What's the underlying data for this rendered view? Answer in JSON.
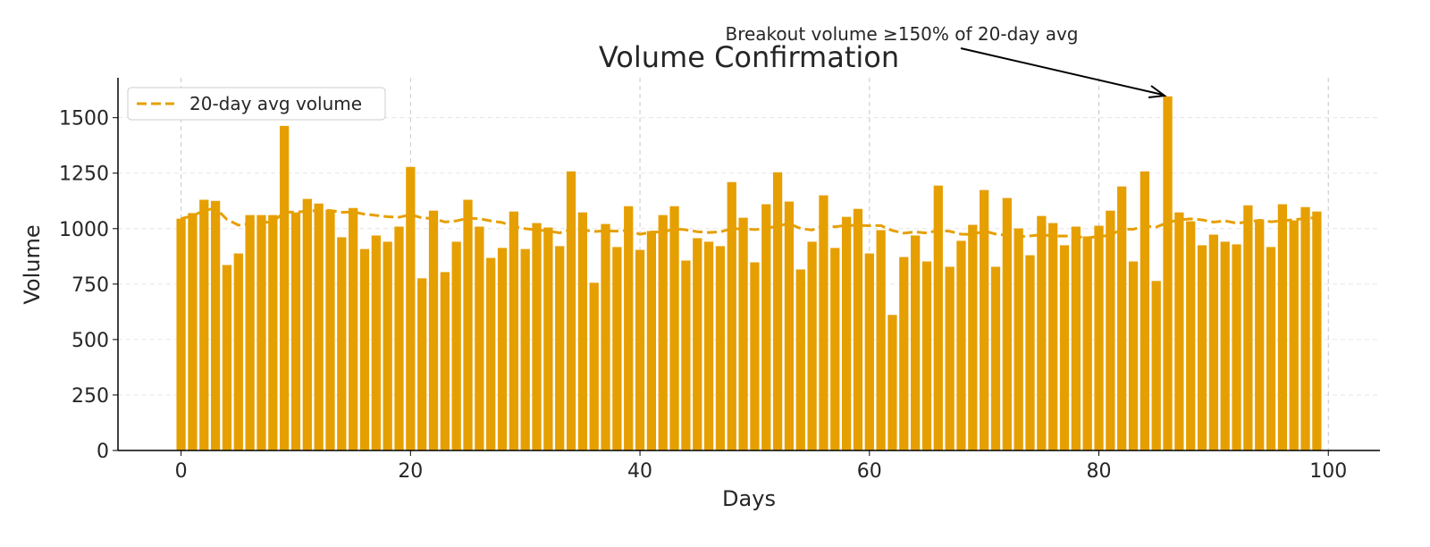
{
  "chart_data": {
    "type": "bar",
    "title": "Volume Confirmation",
    "xlabel": "Days",
    "ylabel": "Volume",
    "xlim": [
      -5.5,
      104.5
    ],
    "ylim": [
      0,
      1680
    ],
    "xticks": [
      0,
      20,
      40,
      60,
      80,
      100
    ],
    "yticks": [
      0,
      250,
      500,
      750,
      1000,
      1250,
      1500
    ],
    "grid": true,
    "legend_position": "top-left",
    "bar_color": "#E69F00",
    "x": [
      0,
      1,
      2,
      3,
      4,
      5,
      6,
      7,
      8,
      9,
      10,
      11,
      12,
      13,
      14,
      15,
      16,
      17,
      18,
      19,
      20,
      21,
      22,
      23,
      24,
      25,
      26,
      27,
      28,
      29,
      30,
      31,
      32,
      33,
      34,
      35,
      36,
      37,
      38,
      39,
      40,
      41,
      42,
      43,
      44,
      45,
      46,
      47,
      48,
      49,
      50,
      51,
      52,
      53,
      54,
      55,
      56,
      57,
      58,
      59,
      60,
      61,
      62,
      63,
      64,
      65,
      66,
      67,
      68,
      69,
      70,
      71,
      72,
      73,
      74,
      75,
      76,
      77,
      78,
      79,
      80,
      81,
      82,
      83,
      84,
      85,
      86,
      87,
      88,
      89,
      90,
      91,
      92,
      93,
      94,
      95,
      96,
      97,
      98,
      99
    ],
    "values": [
      1045,
      1070,
      1130,
      1125,
      836,
      888,
      1061,
      1061,
      1061,
      1463,
      1073,
      1134,
      1113,
      1085,
      961,
      1093,
      908,
      969,
      941,
      1009,
      1278,
      776,
      1081,
      804,
      941,
      1130,
      1009,
      868,
      913,
      1077,
      908,
      1025,
      1005,
      921,
      1258,
      1073,
      756,
      1021,
      917,
      1101,
      904,
      989,
      1061,
      1101,
      856,
      957,
      941,
      921,
      1210,
      1049,
      848,
      1110,
      1254,
      1122,
      816,
      941,
      1150,
      913,
      1053,
      1089,
      888,
      993,
      611,
      872,
      969,
      852,
      1194,
      828,
      945,
      1017,
      1174,
      828,
      1138,
      1001,
      880,
      1057,
      1025,
      925,
      1009,
      965,
      1013,
      1081,
      1190,
      852,
      1258,
      764,
      1596,
      1073,
      1033,
      925,
      973,
      941,
      929,
      1105,
      1041,
      917,
      1110,
      1037,
      1097,
      1077
    ],
    "series": [
      {
        "name": "20-day avg volume",
        "style": "dashed",
        "color": "#E69F00",
        "window": 20
      }
    ],
    "annotation": {
      "text": "Breakout volume ≥150% of 20-day avg",
      "target_x": 86,
      "target_y": 1596
    }
  }
}
